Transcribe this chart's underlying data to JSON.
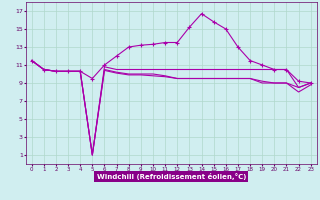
{
  "xlabel": "Windchill (Refroidissement éolien,°C)",
  "background_color": "#d0eef0",
  "grid_color": "#b0d8cc",
  "line_color": "#aa00aa",
  "label_bg": "#8800aa",
  "x_ticks": [
    0,
    1,
    2,
    3,
    4,
    5,
    6,
    7,
    8,
    9,
    10,
    11,
    12,
    13,
    14,
    15,
    16,
    17,
    18,
    19,
    20,
    21,
    22,
    23
  ],
  "y_ticks": [
    1,
    3,
    5,
    7,
    9,
    11,
    13,
    15,
    17
  ],
  "xlim": [
    -0.5,
    23.5
  ],
  "ylim": [
    0.0,
    18.0
  ],
  "line1": [
    11.5,
    10.5,
    10.3,
    10.3,
    10.3,
    9.5,
    11.0,
    12.0,
    13.0,
    13.2,
    13.3,
    13.5,
    13.5,
    15.2,
    16.7,
    15.8,
    15.0,
    13.0,
    11.5,
    11.0,
    10.5,
    10.5,
    9.2,
    9.0
  ],
  "line2": [
    11.5,
    10.5,
    10.3,
    10.3,
    10.3,
    1.0,
    10.8,
    10.5,
    10.5,
    10.5,
    10.5,
    10.5,
    10.5,
    10.5,
    10.5,
    10.5,
    10.5,
    10.5,
    10.5,
    10.5,
    10.5,
    10.5,
    8.5,
    9.0
  ],
  "line3": [
    11.5,
    10.5,
    10.3,
    10.3,
    10.3,
    1.0,
    10.5,
    10.2,
    10.0,
    10.0,
    10.0,
    9.8,
    9.5,
    9.5,
    9.5,
    9.5,
    9.5,
    9.5,
    9.5,
    9.2,
    9.0,
    9.0,
    8.5,
    9.0
  ],
  "line4": [
    11.5,
    10.5,
    10.3,
    10.3,
    10.3,
    1.0,
    10.4,
    10.1,
    9.9,
    9.9,
    9.8,
    9.7,
    9.5,
    9.5,
    9.5,
    9.5,
    9.5,
    9.5,
    9.5,
    9.0,
    9.0,
    9.0,
    8.0,
    8.8
  ]
}
